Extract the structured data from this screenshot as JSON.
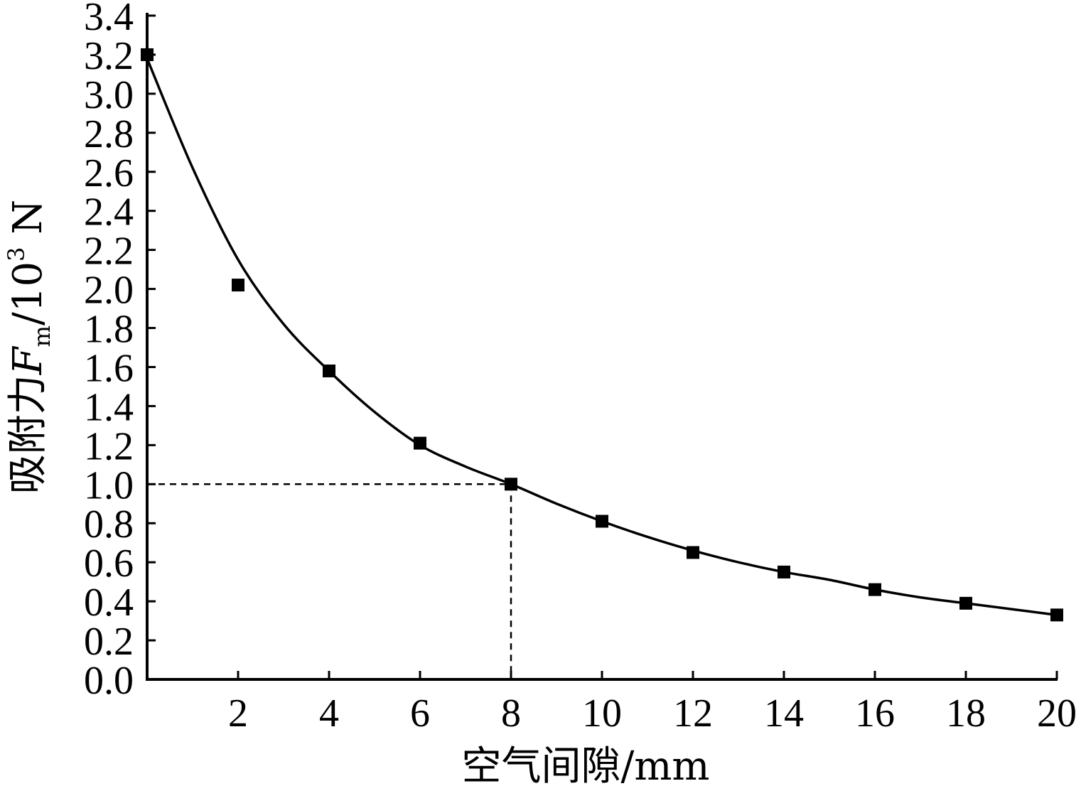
{
  "chart_data": {
    "type": "scatter",
    "title": "",
    "xlabel": "空气间隙/mm",
    "ylabel": {
      "prefix": "吸附力",
      "symbol": "F",
      "subscript": "m",
      "unit_base": "/10",
      "unit_exp": "3",
      "unit_tail": " N"
    },
    "xlim": [
      0,
      20
    ],
    "ylim": [
      0,
      3.4
    ],
    "x_ticks": [
      2,
      4,
      6,
      8,
      10,
      12,
      14,
      16,
      18,
      20
    ],
    "x_tick_labels": [
      "2",
      "4",
      "6",
      "8",
      "10",
      "12",
      "14",
      "16",
      "18",
      "20"
    ],
    "y_ticks": [
      0,
      0.2,
      0.4,
      0.6,
      0.8,
      1.0,
      1.2,
      1.4,
      1.6,
      1.8,
      2.0,
      2.2,
      2.4,
      2.6,
      2.8,
      3.0,
      3.2,
      3.4
    ],
    "y_tick_labels": [
      "0.0",
      "0.2",
      "0.4",
      "0.6",
      "0.8",
      "1.0",
      "1.2",
      "1.4",
      "1.6",
      "1.8",
      "2.0",
      "2.2",
      "2.4",
      "2.6",
      "2.8",
      "3.0",
      "3.2",
      "3.4"
    ],
    "grid": false,
    "legend": "none",
    "series": [
      {
        "marker": "square",
        "x": [
          0,
          2,
          4,
          6,
          8,
          10,
          12,
          14,
          16,
          18,
          20
        ],
        "y": [
          3.2,
          2.02,
          1.58,
          1.21,
          1.0,
          0.81,
          0.65,
          0.55,
          0.46,
          0.39,
          0.33
        ]
      }
    ],
    "fit_curve": {
      "x": [
        0,
        1,
        2,
        3,
        4,
        5,
        6,
        7,
        8,
        9,
        10,
        11,
        12,
        13,
        14,
        15,
        16,
        17,
        18,
        19,
        20
      ],
      "y": [
        3.18,
        2.62,
        2.15,
        1.82,
        1.58,
        1.37,
        1.2,
        1.09,
        1.0,
        0.9,
        0.81,
        0.73,
        0.66,
        0.6,
        0.55,
        0.51,
        0.46,
        0.42,
        0.39,
        0.36,
        0.33
      ]
    },
    "reference": {
      "x": 8,
      "y": 1.0
    }
  }
}
